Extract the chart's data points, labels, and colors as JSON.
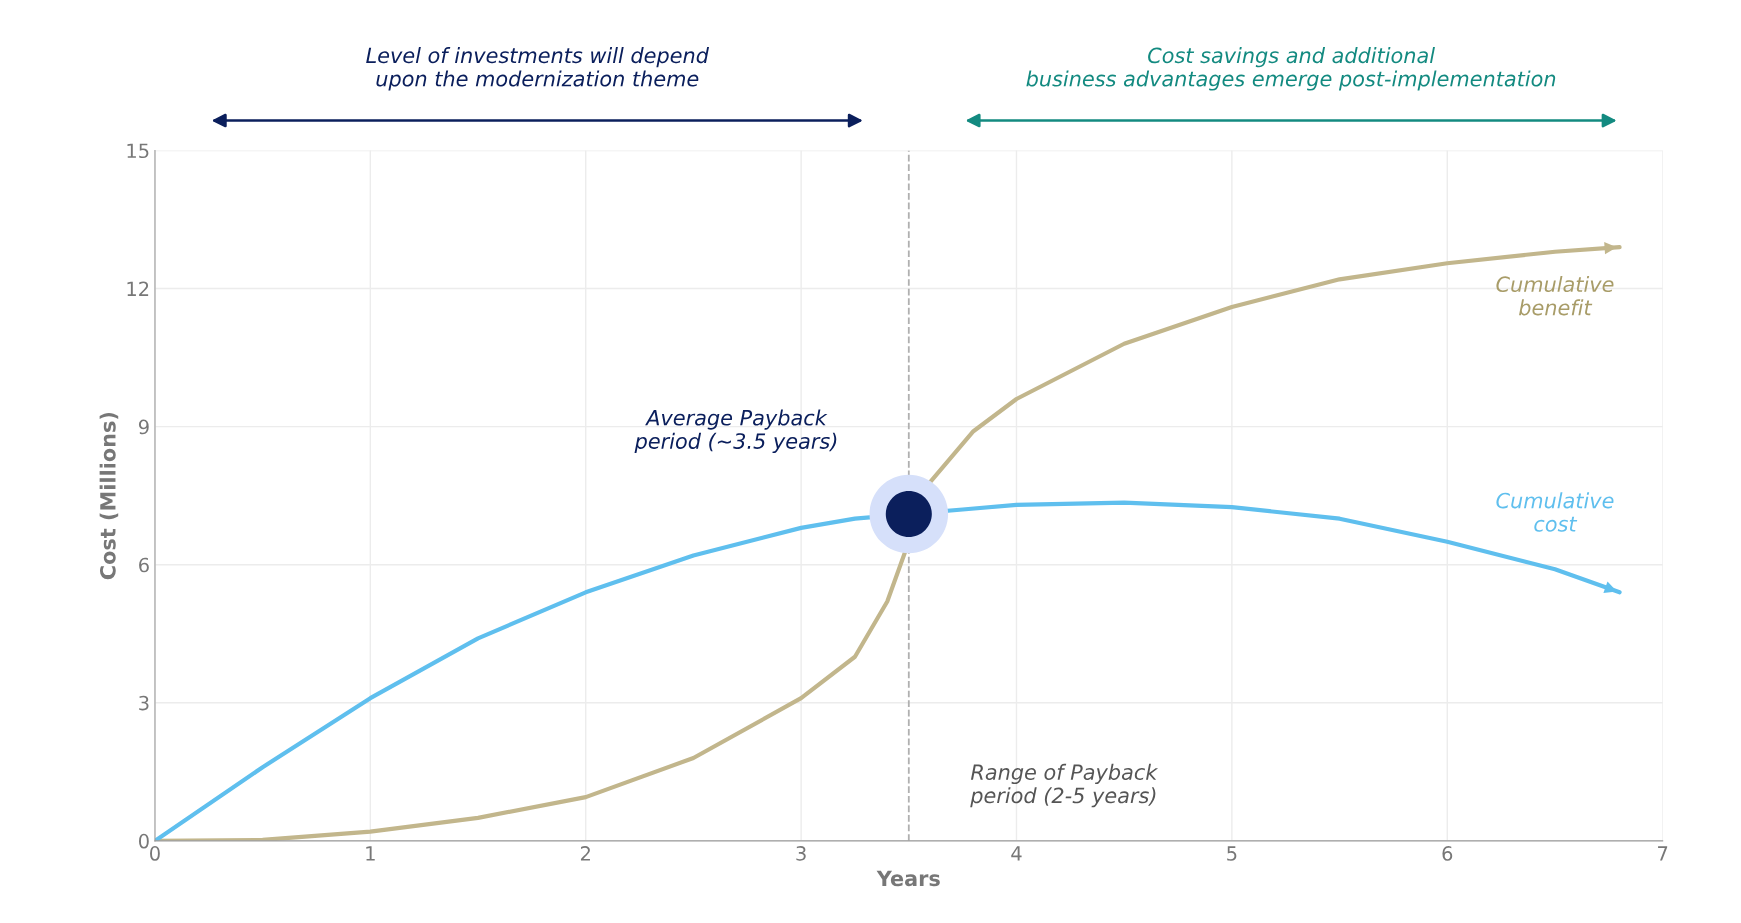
{
  "chart_data": {
    "type": "line",
    "xlabel": "Years",
    "ylabel": "Cost (Millions)",
    "xlim": [
      0,
      7
    ],
    "ylim": [
      0,
      15
    ],
    "xticks": [
      0,
      1,
      2,
      3,
      4,
      5,
      6,
      7
    ],
    "yticks": [
      0,
      3,
      6,
      9,
      12,
      15
    ],
    "grid": true,
    "series": [
      {
        "name": "Cumulative benefit",
        "color": "#c2b68c",
        "x": [
          0,
          0.5,
          1,
          1.5,
          2,
          2.5,
          3,
          3.25,
          3.4,
          3.6,
          3.8,
          4,
          4.5,
          5,
          5.5,
          6,
          6.5,
          6.8
        ],
        "values": [
          0,
          0.02,
          0.2,
          0.5,
          0.95,
          1.8,
          3.1,
          4.0,
          5.2,
          7.8,
          8.9,
          9.6,
          10.8,
          11.6,
          12.2,
          12.55,
          12.8,
          12.9
        ]
      },
      {
        "name": "Cumulative cost",
        "color": "#5fbfee",
        "x": [
          0,
          0.5,
          1,
          1.5,
          2,
          2.5,
          3,
          3.25,
          3.75,
          4,
          4.5,
          5,
          5.5,
          6,
          6.5,
          6.8
        ],
        "values": [
          0,
          1.6,
          3.1,
          4.4,
          5.4,
          6.2,
          6.8,
          7.0,
          7.2,
          7.3,
          7.35,
          7.25,
          7.0,
          6.5,
          5.9,
          5.4
        ]
      },
      {
        "type": "scatter",
        "color": "#0b1f5c",
        "x": [
          3.5
        ],
        "values": [
          7.1
        ]
      }
    ],
    "ref_lines": [
      {
        "axis": "x",
        "value": 3.5,
        "color": "#b0b0b0",
        "line_style": "dashed"
      }
    ],
    "annotations": [
      "Level of investments will depend upon the modernization theme",
      "Cost savings and additional business advantages emerge post-implementation",
      "Average Payback period (~3.5 years)",
      "Range of Payback period (2-5 years)"
    ]
  }
}
